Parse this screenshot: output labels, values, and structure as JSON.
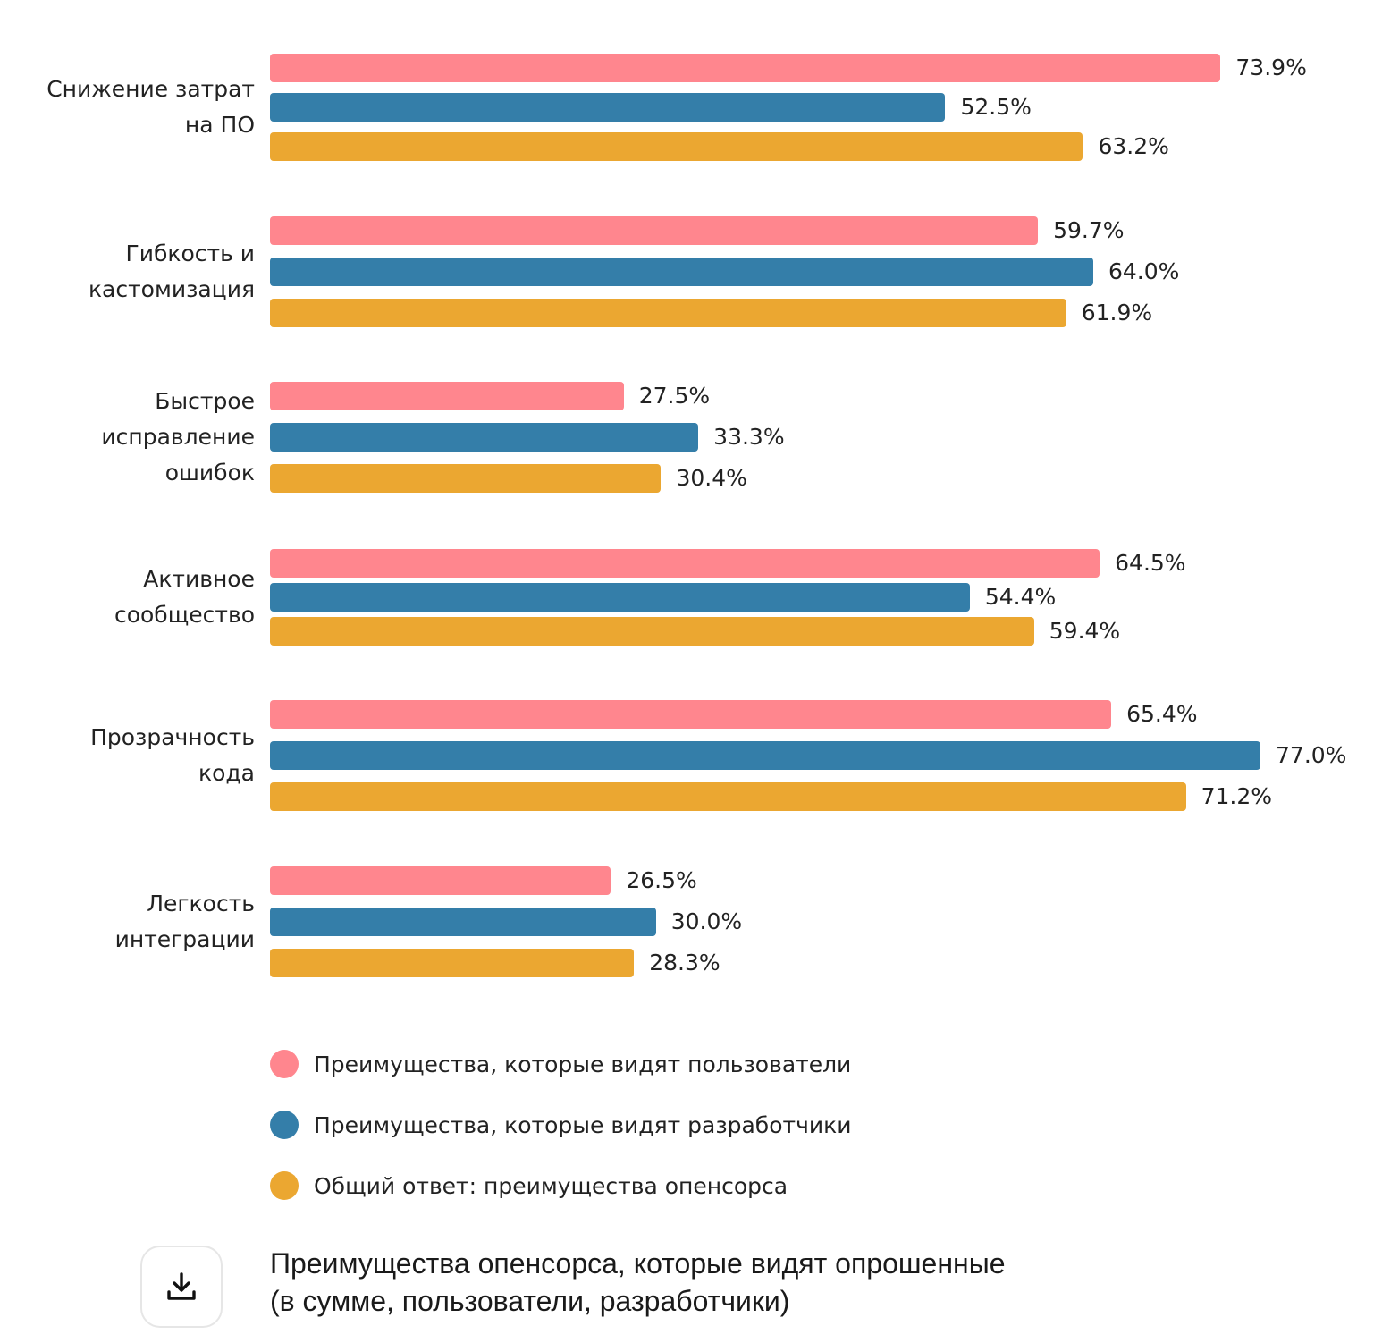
{
  "chart_data": {
    "type": "bar",
    "orientation": "horizontal",
    "title": "Преимущества опенсорса, которые видят опрошенные (в сумме, пользователи, разработчики)",
    "xlabel": "",
    "ylabel": "",
    "xlim": [
      0,
      77
    ],
    "grid": false,
    "legend_position": "bottom",
    "value_format": "{v}%",
    "categories": [
      "Снижение затрат\nна ПО",
      "Гибкость и\nкастомизация",
      "Быстрое\nисправление\nошибок",
      "Активное\nсообщество",
      "Прозрачность\nкода",
      "Легкость\nинтеграции"
    ],
    "series": [
      {
        "name": "Преимущества, которые видят пользователи",
        "color": "#FF868E",
        "values": [
          73.9,
          59.7,
          27.5,
          64.5,
          65.4,
          26.5
        ],
        "labels": [
          "73.9%",
          "59.7%",
          "27.5%",
          "64.5%",
          "65.4%",
          "26.5%"
        ]
      },
      {
        "name": "Преимущества, которые видят разработчики",
        "color": "#347EA9",
        "values": [
          52.5,
          64.0,
          33.3,
          54.4,
          77.0,
          30.0
        ],
        "labels": [
          "52.5%",
          "64.0%",
          "33.3%",
          "54.4%",
          "77.0%",
          "30.0%"
        ]
      },
      {
        "name": "Общий ответ: преимущества опенсорса",
        "color": "#EBA731",
        "values": [
          63.2,
          61.9,
          30.4,
          59.4,
          71.2,
          28.3
        ],
        "labels": [
          "63.2%",
          "61.9%",
          "30.4%",
          "59.4%",
          "71.2%",
          "28.3%"
        ]
      }
    ]
  },
  "legend": {
    "items": [
      {
        "label": "Преимущества, которые видят пользователи",
        "color": "#FF868E"
      },
      {
        "label": "Преимущества, которые видят разработчики",
        "color": "#347EA9"
      },
      {
        "label": "Общий ответ: преимущества опенсорса",
        "color": "#EBA731"
      }
    ]
  },
  "footer": {
    "download_icon": "download-icon",
    "caption_line1": "Преимущества опенсорса, которые видят опрошенные",
    "caption_line2": "(в сумме, пользователи, разработчики)"
  }
}
